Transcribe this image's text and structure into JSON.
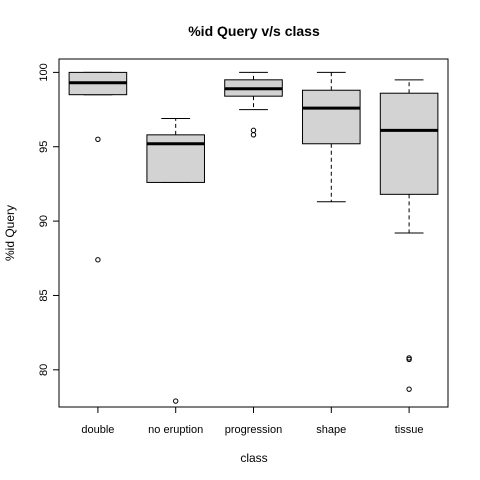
{
  "chart_data": {
    "type": "boxplot",
    "title": "%id Query v/s class",
    "xlabel": "class",
    "ylabel": "%id Query",
    "ylim": [
      77.5,
      100.9
    ],
    "yticks": [
      80,
      85,
      90,
      95,
      100
    ],
    "categories": [
      "double",
      "no eruption",
      "progression",
      "shape",
      "tissue"
    ],
    "box_fill": "#d3d3d3",
    "boxes": [
      {
        "category": "double",
        "whisker_low": 98.5,
        "q1": 98.5,
        "median": 99.3,
        "q3": 100.0,
        "whisker_high": 100.0,
        "outliers": [
          95.5,
          87.4
        ]
      },
      {
        "category": "no eruption",
        "whisker_low": 92.6,
        "q1": 92.6,
        "median": 95.2,
        "q3": 95.8,
        "whisker_high": 96.9,
        "outliers": [
          77.9
        ]
      },
      {
        "category": "progression",
        "whisker_low": 97.5,
        "q1": 98.4,
        "median": 98.9,
        "q3": 99.5,
        "whisker_high": 100.0,
        "outliers": [
          96.1,
          95.8
        ]
      },
      {
        "category": "shape",
        "whisker_low": 91.3,
        "q1": 95.2,
        "median": 97.6,
        "q3": 98.8,
        "whisker_high": 100.0,
        "outliers": []
      },
      {
        "category": "tissue",
        "whisker_low": 89.2,
        "q1": 91.8,
        "median": 96.1,
        "q3": 98.6,
        "whisker_high": 99.5,
        "outliers": [
          80.8,
          80.7,
          78.7
        ]
      }
    ]
  }
}
